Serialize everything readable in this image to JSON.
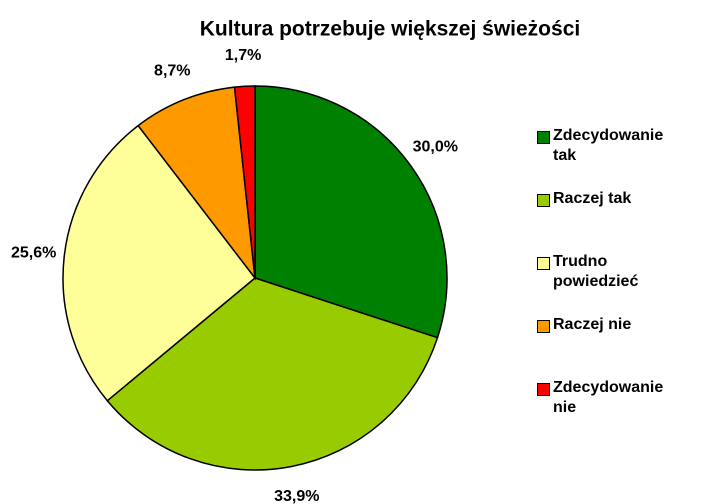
{
  "chart_data": {
    "type": "pie",
    "title": "Kultura potrzebuje większej świeżości",
    "categories": [
      "Zdecydowanie tak",
      "Raczej tak",
      "Trudno powiedzieć",
      "Raczej nie",
      "Zdecydowanie nie"
    ],
    "values": [
      30.0,
      33.9,
      25.6,
      8.7,
      1.7
    ],
    "value_labels": [
      "30,0%",
      "33,9%",
      "25,6%",
      "8,7%",
      "1,7%"
    ],
    "colors": [
      "#008000",
      "#99cc00",
      "#ffff99",
      "#ff9900",
      "#ff0000"
    ],
    "legend": "right"
  }
}
